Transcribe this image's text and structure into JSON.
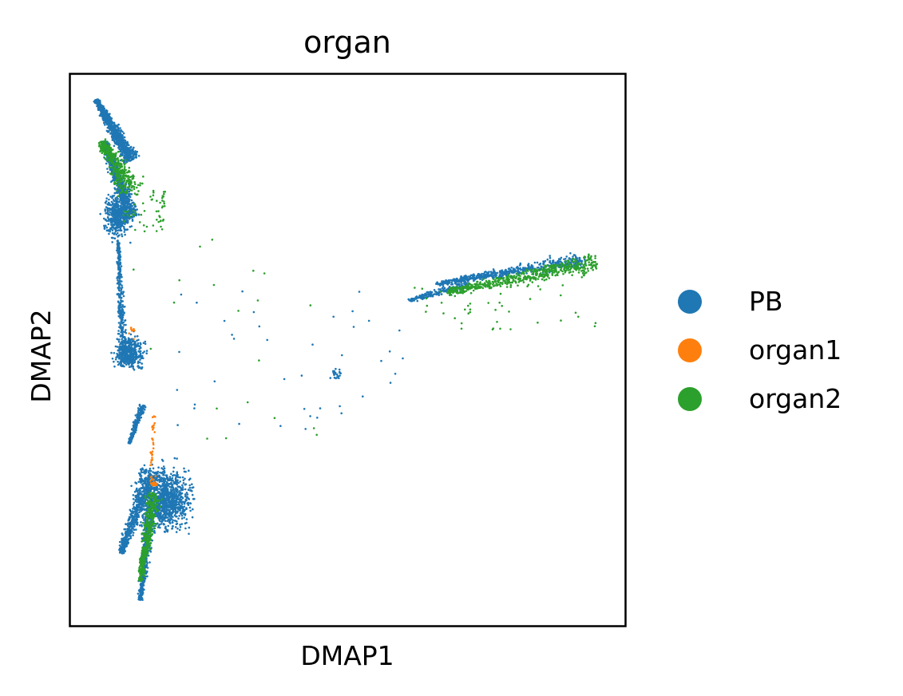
{
  "chart_data": {
    "type": "scatter",
    "title": "organ",
    "xlabel": "DMAP1",
    "ylabel": "DMAP2",
    "xticks": [],
    "yticks": [],
    "grid": false,
    "legend_position": "right",
    "xlim": [
      0,
      100
    ],
    "ylim": [
      0,
      100
    ],
    "series": [
      {
        "name": "PB",
        "color": "#1f77b4",
        "clusters": [
          {
            "kind": "line",
            "from": [
              4.5,
              95.5
            ],
            "to": [
              11.0,
              84.5
            ],
            "count": 900,
            "spread": 1.1
          },
          {
            "kind": "line",
            "from": [
              6.0,
              88.0
            ],
            "to": [
              11.0,
              74.0
            ],
            "count": 700,
            "spread": 1.2
          },
          {
            "kind": "blob",
            "center": [
              8.5,
              74.5
            ],
            "radius": [
              2.2,
              3.4
            ],
            "count": 500
          },
          {
            "kind": "line",
            "from": [
              8.5,
              70.0
            ],
            "to": [
              9.5,
              48.0
            ],
            "count": 300,
            "spread": 0.6
          },
          {
            "kind": "blob",
            "center": [
              10.5,
              49.5
            ],
            "radius": [
              2.4,
              2.8
            ],
            "count": 450
          },
          {
            "kind": "line",
            "from": [
              10.5,
              33.0
            ],
            "to": [
              13.0,
              40.0
            ],
            "count": 220,
            "spread": 0.5
          },
          {
            "kind": "line",
            "from": [
              9.0,
              13.0
            ],
            "to": [
              14.5,
              28.0
            ],
            "count": 600,
            "spread": 1.3
          },
          {
            "kind": "blob",
            "center": [
              17.0,
              23.0
            ],
            "radius": [
              4.2,
              4.8
            ],
            "count": 1100
          },
          {
            "kind": "line",
            "from": [
              12.5,
              4.5
            ],
            "to": [
              14.5,
              22.0
            ],
            "count": 500,
            "spread": 0.9
          },
          {
            "kind": "line",
            "from": [
              66.0,
              62.0
            ],
            "to": [
              93.0,
              66.5
            ],
            "count": 550,
            "spread": 1.0
          },
          {
            "kind": "line",
            "from": [
              61.0,
              59.0
            ],
            "to": [
              72.0,
              62.0
            ],
            "count": 200,
            "spread": 0.8
          },
          {
            "kind": "blob",
            "center": [
              48.0,
              45.5
            ],
            "radius": [
              1.0,
              1.0
            ],
            "count": 25
          },
          {
            "kind": "scatter",
            "box": [
              18.0,
              35.0,
              60.0,
              62.0
            ],
            "count": 40
          }
        ]
      },
      {
        "name": "organ1",
        "color": "#ff7f0e",
        "clusters": [
          {
            "kind": "line",
            "from": [
              14.5,
              29.0
            ],
            "to": [
              15.0,
              38.0
            ],
            "count": 30,
            "spread": 0.4
          },
          {
            "kind": "blob",
            "center": [
              15.0,
              26.0
            ],
            "radius": [
              0.7,
              1.2
            ],
            "count": 25
          },
          {
            "kind": "blob",
            "center": [
              11.0,
              53.0
            ],
            "radius": [
              0.5,
              1.0
            ],
            "count": 8
          }
        ]
      },
      {
        "name": "organ2",
        "color": "#2ca02c",
        "clusters": [
          {
            "kind": "line",
            "from": [
              5.5,
              88.0
            ],
            "to": [
              11.0,
              79.0
            ],
            "count": 350,
            "spread": 1.8
          },
          {
            "kind": "scatter",
            "box": [
              9.0,
              71.5,
              17.0,
              79.0
            ],
            "count": 60
          },
          {
            "kind": "line",
            "from": [
              12.5,
              8.0
            ],
            "to": [
              15.0,
              24.0
            ],
            "count": 420,
            "spread": 1.0
          },
          {
            "kind": "line",
            "from": [
              68.0,
              60.5
            ],
            "to": [
              95.0,
              66.0
            ],
            "count": 550,
            "spread": 1.3
          },
          {
            "kind": "scatter",
            "box": [
              62.0,
              53.0,
              96.0,
              62.0
            ],
            "count": 45
          },
          {
            "kind": "scatter",
            "box": [
              10.0,
              30.0,
              45.0,
              72.0
            ],
            "count": 20
          }
        ]
      }
    ]
  }
}
